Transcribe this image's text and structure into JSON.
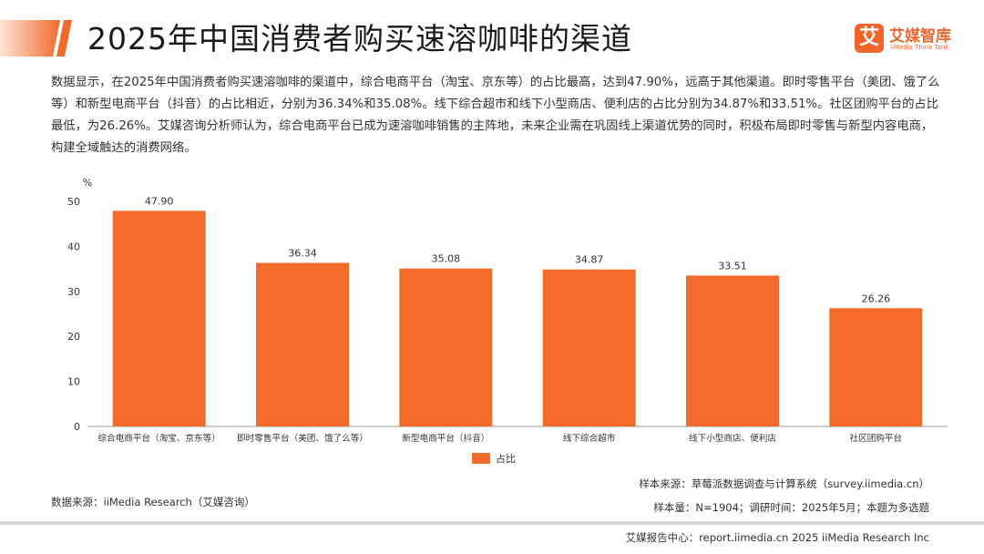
{
  "header": {
    "title": "2025年中国消费者购买速溶咖啡的渠道",
    "logo_char": "艾",
    "logo_name": "艾媒智库",
    "logo_sub": "iiMedia Think Tank"
  },
  "description": "数据显示，在2025年中国消费者购买速溶咖啡的渠道中，综合电商平台（淘宝、京东等）的占比最高，达到47.90%，远高于其他渠道。即时零售平台（美团、饿了么等）和新型电商平台（抖音）的占比相近，分别为36.34%和35.08%。线下综合超市和线下小型商店、便利店的占比分别为34.87%和33.51%。社区团购平台的占比最低，为26.26%。艾媒咨询分析师认为，综合电商平台已成为速溶咖啡销售的主阵地，未来企业需在巩固线上渠道优势的同时，积极布局即时零售与新型内容电商，构建全域触达的消费网络。",
  "chart_data": {
    "type": "bar",
    "categories": [
      "综合电商平台（淘宝、京东等）",
      "即时零售平台（美团、饿了么等）",
      "新型电商平台（抖音）",
      "线下综合超市",
      "线下小型商店、便利店",
      "社区团购平台"
    ],
    "series": [
      {
        "name": "占比",
        "values": [
          47.9,
          36.34,
          35.08,
          34.87,
          33.51,
          26.26
        ]
      }
    ],
    "value_labels": [
      "47.90",
      "36.34",
      "35.08",
      "34.87",
      "33.51",
      "26.26"
    ],
    "ylabel": "%",
    "ylim": [
      0,
      50
    ],
    "yticks": [
      0,
      10,
      20,
      30,
      40,
      50
    ],
    "grid": false,
    "legend": "bottom-center",
    "bar_color": "#f26b2a"
  },
  "footer": {
    "source": "数据来源：iiMedia Research（艾媒咨询）",
    "sample_source": "样本来源：草莓派数据调查与计算系统（survey.iimedia.cn）",
    "sample_info": "样本量：N=1904；调研时间：2025年5月；本题为多选题",
    "report": "艾媒报告中心：report.iimedia.cn  2025 iiMedia Research Inc"
  }
}
